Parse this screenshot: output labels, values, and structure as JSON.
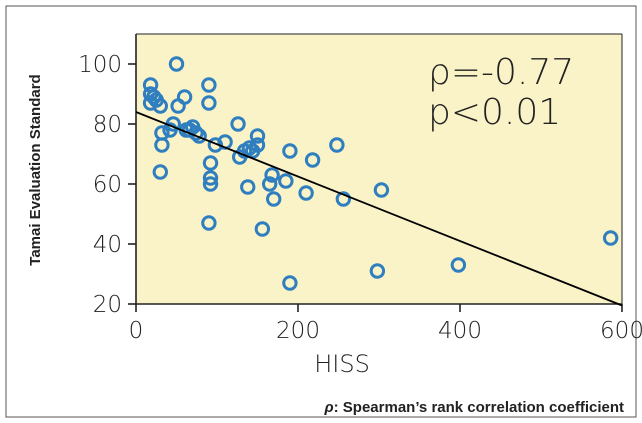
{
  "chart_data": {
    "type": "scatter",
    "title": "",
    "xlabel": "HISS",
    "ylabel": "Tamai Evaluation Standard",
    "xlim": [
      0,
      600
    ],
    "ylim": [
      20,
      110
    ],
    "xticks": [
      "0",
      "200",
      "400",
      "600"
    ],
    "yticks": [
      "20",
      "40",
      "60",
      "80",
      "100"
    ],
    "grid": false,
    "background_color": "#fbf3c8",
    "marker_color": "#2f7fc0",
    "line_color": "#000000",
    "series": [
      {
        "points": [
          [
            18,
            93
          ],
          [
            18,
            90
          ],
          [
            18,
            87
          ],
          [
            22,
            89
          ],
          [
            25,
            88
          ],
          [
            30,
            86
          ],
          [
            32,
            77
          ],
          [
            32,
            73
          ],
          [
            30,
            64
          ],
          [
            42,
            78
          ],
          [
            46,
            80
          ],
          [
            50,
            100
          ],
          [
            52,
            86
          ],
          [
            60,
            89
          ],
          [
            62,
            78
          ],
          [
            66,
            78
          ],
          [
            70,
            79
          ],
          [
            74,
            77
          ],
          [
            78,
            76
          ],
          [
            90,
            93
          ],
          [
            90,
            87
          ],
          [
            90,
            47
          ],
          [
            92,
            67
          ],
          [
            92,
            62
          ],
          [
            92,
            60
          ],
          [
            98,
            73
          ],
          [
            110,
            74
          ],
          [
            126,
            80
          ],
          [
            128,
            69
          ],
          [
            134,
            71
          ],
          [
            138,
            59
          ],
          [
            140,
            72
          ],
          [
            144,
            71
          ],
          [
            150,
            73
          ],
          [
            150,
            76
          ],
          [
            156,
            45
          ],
          [
            165,
            60
          ],
          [
            168,
            63
          ],
          [
            170,
            55
          ],
          [
            185,
            61
          ],
          [
            190,
            71
          ],
          [
            190,
            27
          ],
          [
            210,
            57
          ],
          [
            218,
            68
          ],
          [
            248,
            73
          ],
          [
            256,
            55
          ],
          [
            298,
            31
          ],
          [
            303,
            58
          ],
          [
            398,
            33
          ],
          [
            586,
            42
          ]
        ]
      }
    ],
    "regression": {
      "x": [
        0,
        600
      ],
      "y": [
        84,
        19.5
      ]
    },
    "annotations": [
      {
        "text": "ρ=-0.77",
        "position": "top-right"
      },
      {
        "text": "p<0.01",
        "position": "top-right"
      }
    ],
    "footnote": {
      "symbol": "ρ",
      "text": ": Spearman’s rank correlation coefficient"
    }
  }
}
